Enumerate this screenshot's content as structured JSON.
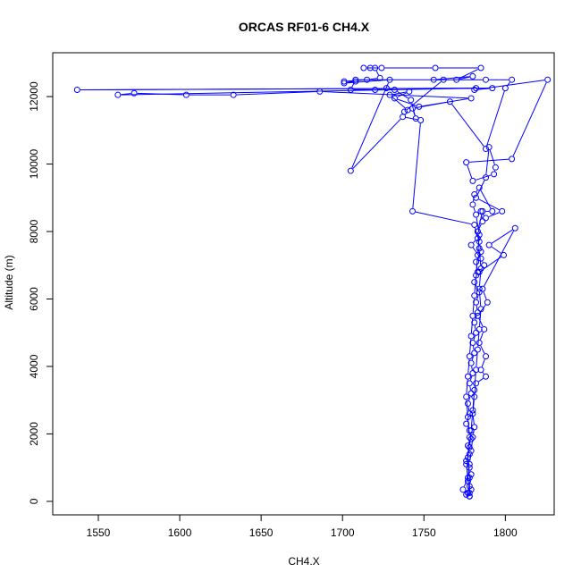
{
  "chart_data": {
    "type": "line",
    "title": "ORCAS RF01-6 CH4.X",
    "xlabel": "CH4.X",
    "ylabel": "Altitude (m)",
    "xlim": [
      1522,
      1830
    ],
    "ylim": [
      -400,
      13300
    ],
    "x_ticks": [
      1550,
      1600,
      1650,
      1700,
      1750,
      1800
    ],
    "y_ticks": [
      0,
      2000,
      4000,
      6000,
      8000,
      10000,
      12000
    ],
    "grid": false,
    "legend": "none",
    "series_color": "#0000ff",
    "marker": "open-circle",
    "series": [
      {
        "values": [
          [
            1778,
            150
          ],
          [
            1777,
            250
          ],
          [
            1779,
            350
          ],
          [
            1776,
            200
          ],
          [
            1778,
            450
          ],
          [
            1777,
            600
          ],
          [
            1779,
            800
          ],
          [
            1778,
            1000
          ],
          [
            1776,
            1200
          ],
          [
            1778,
            1400
          ],
          [
            1777,
            1650
          ],
          [
            1779,
            1850
          ],
          [
            1778,
            2100
          ],
          [
            1776,
            2300
          ],
          [
            1778,
            2600
          ],
          [
            1777,
            2900
          ],
          [
            1779,
            3200
          ],
          [
            1778,
            3500
          ],
          [
            1780,
            3800
          ],
          [
            1779,
            4100
          ],
          [
            1781,
            4400
          ],
          [
            1780,
            4700
          ],
          [
            1782,
            5000
          ],
          [
            1781,
            5300
          ],
          [
            1783,
            5600
          ],
          [
            1782,
            5900
          ],
          [
            1784,
            6200
          ],
          [
            1781,
            6500
          ],
          [
            1783,
            6800
          ],
          [
            1782,
            7100
          ],
          [
            1785,
            7400
          ],
          [
            1784,
            7700
          ],
          [
            1783,
            8000
          ],
          [
            1786,
            8300
          ],
          [
            1785,
            8600
          ],
          [
            1788,
            8400
          ],
          [
            1798,
            8600
          ],
          [
            1782,
            9000
          ],
          [
            1788,
            9600
          ],
          [
            1790,
            10500
          ],
          [
            1794,
            9900
          ],
          [
            1793,
            9700
          ],
          [
            1780,
            9500
          ],
          [
            1776,
            10050
          ],
          [
            1804,
            10150
          ],
          [
            1826,
            12500
          ],
          [
            1781,
            12200
          ],
          [
            1792,
            12250
          ],
          [
            1537,
            12200
          ],
          [
            1782,
            12250
          ],
          [
            1562,
            12050
          ],
          [
            1572,
            12100
          ],
          [
            1604,
            12050
          ],
          [
            1633,
            12050
          ],
          [
            1686,
            12150
          ],
          [
            1779,
            11950
          ],
          [
            1747,
            11700
          ],
          [
            1732,
            11950
          ],
          [
            1741,
            12150
          ],
          [
            1729,
            12050
          ],
          [
            1740,
            11600
          ],
          [
            1738,
            11550
          ],
          [
            1762,
            12500
          ],
          [
            1708,
            12500
          ],
          [
            1705,
            12200
          ],
          [
            1720,
            12200
          ],
          [
            1727,
            12250
          ],
          [
            1732,
            12200
          ],
          [
            1742,
            11900
          ],
          [
            1745,
            11350
          ],
          [
            1743,
            11650
          ],
          [
            1766,
            11850
          ],
          [
            1788,
            10450
          ],
          [
            1800,
            12250
          ],
          [
            1804,
            12500
          ],
          [
            1788,
            12500
          ],
          [
            1756,
            12500
          ],
          [
            1780,
            12600
          ],
          [
            1770,
            12500
          ],
          [
            1785,
            12850
          ],
          [
            1757,
            12850
          ],
          [
            1724,
            12850
          ],
          [
            1717,
            12850
          ],
          [
            1713,
            12850
          ],
          [
            1720,
            12850
          ],
          [
            1723,
            12550
          ],
          [
            1715,
            12500
          ],
          [
            1701,
            12450
          ],
          [
            1708,
            12450
          ],
          [
            1701,
            12400
          ],
          [
            1729,
            12500
          ],
          [
            1705,
            9800
          ],
          [
            1737,
            11400
          ],
          [
            1748,
            11300
          ],
          [
            1743,
            8600
          ],
          [
            1781,
            8200
          ],
          [
            1783,
            7800
          ],
          [
            1779,
            7600
          ],
          [
            1785,
            7200
          ],
          [
            1787,
            7000
          ],
          [
            1784,
            6800
          ],
          [
            1799,
            7300
          ],
          [
            1790,
            7600
          ],
          [
            1806,
            8100
          ],
          [
            1786,
            6300
          ],
          [
            1789,
            5900
          ],
          [
            1783,
            5500
          ],
          [
            1787,
            5100
          ],
          [
            1784,
            4700
          ],
          [
            1788,
            4300
          ],
          [
            1785,
            3900
          ],
          [
            1788,
            3700
          ],
          [
            1782,
            3500
          ],
          [
            1781,
            3100
          ],
          [
            1780,
            2600
          ],
          [
            1781,
            2200
          ],
          [
            1780,
            1900
          ],
          [
            1779,
            1500
          ],
          [
            1778,
            1100
          ],
          [
            1777,
            700
          ],
          [
            1774,
            350
          ],
          [
            1778,
            250
          ],
          [
            1776,
            1100
          ],
          [
            1778,
            1600
          ],
          [
            1779,
            2100
          ],
          [
            1780,
            2700
          ],
          [
            1781,
            3300
          ],
          [
            1782,
            3900
          ],
          [
            1783,
            4500
          ],
          [
            1784,
            5100
          ],
          [
            1785,
            5700
          ],
          [
            1784,
            6300
          ],
          [
            1785,
            6900
          ],
          [
            1784,
            7500
          ],
          [
            1783,
            8000
          ],
          [
            1786,
            8600
          ],
          [
            1792,
            8600
          ],
          [
            1784,
            9300
          ],
          [
            1781,
            9100
          ],
          [
            1780,
            8800
          ],
          [
            1782,
            8500
          ],
          [
            1784,
            7900
          ],
          [
            1783,
            7300
          ],
          [
            1782,
            6700
          ],
          [
            1781,
            6100
          ],
          [
            1780,
            5500
          ],
          [
            1779,
            4900
          ],
          [
            1778,
            4300
          ],
          [
            1777,
            3700
          ],
          [
            1776,
            3100
          ],
          [
            1777,
            2500
          ],
          [
            1778,
            1900
          ],
          [
            1777,
            1300
          ],
          [
            1778,
            700
          ],
          [
            1778,
            150
          ]
        ]
      }
    ]
  }
}
